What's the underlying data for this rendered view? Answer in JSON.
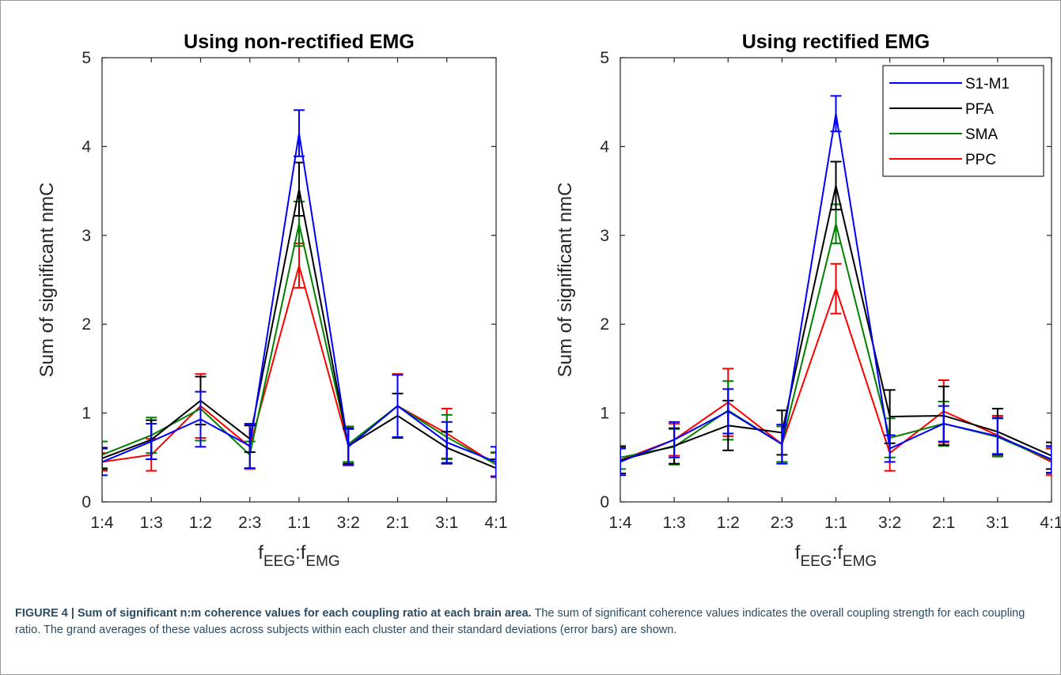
{
  "chart_data": [
    {
      "type": "line",
      "title": "Using non-rectified EMG",
      "ylabel": "Sum of significant nmC",
      "xlabel_main": "f",
      "xlabel_sub1": "EEG",
      "xlabel_sep": ":f",
      "xlabel_sub2": "EMG",
      "categories": [
        "1:4",
        "1:3",
        "1:2",
        "2:3",
        "1:1",
        "3:2",
        "2:1",
        "3:1",
        "4:1"
      ],
      "ylim": [
        0,
        5
      ],
      "yticks": [
        "0",
        "1",
        "2",
        "3",
        "4",
        "5"
      ],
      "legend": null,
      "series": [
        {
          "name": "PPC",
          "color": "#ff0000",
          "values": [
            0.45,
            0.53,
            1.08,
            0.62,
            2.66,
            0.63,
            1.08,
            0.77,
            0.42
          ],
          "errors": [
            0.1,
            0.18,
            0.36,
            0.25,
            0.25,
            0.22,
            0.36,
            0.28,
            0.13
          ]
        },
        {
          "name": "SMA",
          "color": "#008000",
          "values": [
            0.53,
            0.75,
            1.05,
            0.53,
            3.13,
            0.65,
            1.08,
            0.73,
            0.42
          ],
          "errors": [
            0.15,
            0.2,
            0.36,
            0.15,
            0.25,
            0.2,
            0.35,
            0.25,
            0.14
          ]
        },
        {
          "name": "PFA",
          "color": "#000000",
          "values": [
            0.49,
            0.7,
            1.14,
            0.71,
            3.52,
            0.63,
            0.97,
            0.61,
            0.38
          ],
          "errors": [
            0.12,
            0.22,
            0.27,
            0.15,
            0.3,
            0.2,
            0.25,
            0.18,
            0.1
          ]
        },
        {
          "name": "S1-M1",
          "color": "#0000ff",
          "values": [
            0.45,
            0.68,
            0.93,
            0.63,
            4.15,
            0.62,
            1.08,
            0.67,
            0.45
          ],
          "errors": [
            0.15,
            0.2,
            0.31,
            0.25,
            0.26,
            0.2,
            0.35,
            0.23,
            0.17
          ]
        }
      ]
    },
    {
      "type": "line",
      "title": "Using rectified EMG",
      "ylabel": "Sum of significant nmC",
      "xlabel_main": "f",
      "xlabel_sub1": "EEG",
      "xlabel_sep": ":f",
      "xlabel_sub2": "EMG",
      "categories": [
        "1:4",
        "1:3",
        "1:2",
        "2:3",
        "1:1",
        "3:2",
        "2:1",
        "3:1",
        "4:1"
      ],
      "ylim": [
        0,
        5
      ],
      "yticks": [
        "0",
        "1",
        "2",
        "3",
        "4",
        "5"
      ],
      "legend": "top-right",
      "series": [
        {
          "name": "PPC",
          "color": "#ff0000",
          "values": [
            0.47,
            0.7,
            1.12,
            0.65,
            2.4,
            0.55,
            1.02,
            0.75,
            0.45
          ],
          "errors": [
            0.15,
            0.18,
            0.38,
            0.2,
            0.28,
            0.2,
            0.35,
            0.22,
            0.15
          ]
        },
        {
          "name": "SMA",
          "color": "#008000",
          "values": [
            0.5,
            0.62,
            1.03,
            0.65,
            3.13,
            0.72,
            0.88,
            0.73,
            0.47
          ],
          "errors": [
            0.13,
            0.2,
            0.33,
            0.2,
            0.22,
            0.22,
            0.25,
            0.22,
            0.15
          ]
        },
        {
          "name": "PFA",
          "color": "#000000",
          "values": [
            0.47,
            0.63,
            0.86,
            0.78,
            3.56,
            0.96,
            0.97,
            0.79,
            0.52
          ],
          "errors": [
            0.15,
            0.2,
            0.28,
            0.25,
            0.27,
            0.3,
            0.33,
            0.26,
            0.15
          ]
        },
        {
          "name": "S1-M1",
          "color": "#0000ff",
          "values": [
            0.45,
            0.7,
            1.02,
            0.65,
            4.37,
            0.6,
            0.88,
            0.74,
            0.48
          ],
          "errors": [
            0.15,
            0.2,
            0.25,
            0.22,
            0.2,
            0.15,
            0.2,
            0.2,
            0.15
          ]
        }
      ]
    }
  ],
  "caption": {
    "bold": "FIGURE 4 | Sum of significant n:m coherence values for each coupling ratio at each brain area.",
    "text": " The sum of significant coherence values indicates the overall coupling strength for each coupling ratio. The grand averages of these values across subjects within each cluster and their standard deviations (error bars) are shown."
  }
}
